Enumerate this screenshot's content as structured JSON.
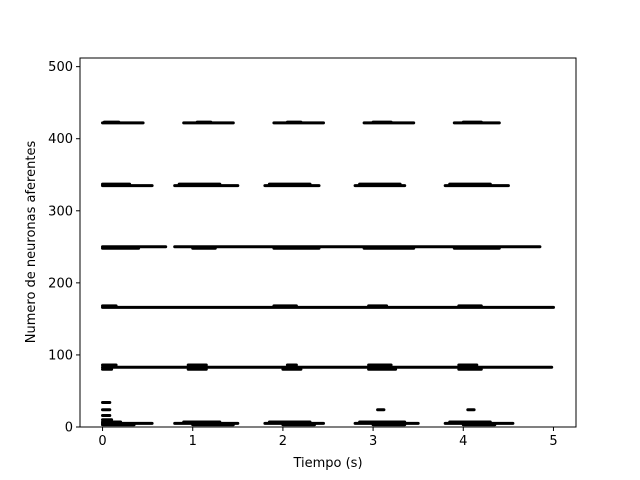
{
  "chart_data": {
    "type": "scatter",
    "title": "",
    "xlabel": "Tiempo (s)",
    "ylabel": "Numero de neuronas aferentes",
    "xlim": [
      -0.25,
      5.25
    ],
    "ylim": [
      0,
      512
    ],
    "xticks": [
      0,
      1,
      2,
      3,
      4,
      5
    ],
    "yticks": [
      0,
      100,
      200,
      300,
      400,
      500
    ],
    "grid": false,
    "legend": "none",
    "marker_color": "#000000",
    "series": [
      {
        "neuron": 422,
        "spikes": [
          [
            0.0,
            0.45
          ],
          [
            0.9,
            1.45
          ],
          [
            1.9,
            2.45
          ],
          [
            2.9,
            3.45
          ],
          [
            3.9,
            4.4
          ]
        ]
      },
      {
        "neuron": 423,
        "spikes": [
          [
            0.02,
            0.18
          ],
          [
            1.05,
            1.2
          ],
          [
            2.05,
            2.2
          ],
          [
            3.0,
            3.2
          ],
          [
            4.0,
            4.2
          ]
        ]
      },
      {
        "neuron": 335,
        "spikes": [
          [
            0.0,
            0.55
          ],
          [
            0.8,
            1.5
          ],
          [
            1.8,
            2.4
          ],
          [
            2.8,
            3.35
          ],
          [
            3.8,
            4.5
          ]
        ]
      },
      {
        "neuron": 337,
        "spikes": [
          [
            0.0,
            0.3
          ],
          [
            0.85,
            1.3
          ],
          [
            1.85,
            2.3
          ],
          [
            2.85,
            3.3
          ],
          [
            3.85,
            4.3
          ]
        ]
      },
      {
        "neuron": 250,
        "spikes": [
          [
            0.0,
            0.7
          ],
          [
            0.8,
            4.85
          ]
        ]
      },
      {
        "neuron": 248,
        "spikes": [
          [
            0.0,
            0.4
          ],
          [
            1.0,
            1.25
          ],
          [
            1.9,
            2.4
          ],
          [
            2.9,
            3.45
          ],
          [
            3.9,
            4.4
          ]
        ]
      },
      {
        "neuron": 166,
        "spikes": [
          [
            0.0,
            5.0
          ]
        ]
      },
      {
        "neuron": 168,
        "spikes": [
          [
            0.0,
            0.15
          ],
          [
            1.9,
            2.15
          ],
          [
            2.95,
            3.15
          ],
          [
            3.95,
            4.2
          ]
        ]
      },
      {
        "neuron": 83,
        "spikes": [
          [
            0.0,
            4.98
          ]
        ]
      },
      {
        "neuron": 86,
        "spikes": [
          [
            0.0,
            0.15
          ],
          [
            0.95,
            1.15
          ],
          [
            2.05,
            2.15
          ],
          [
            2.95,
            3.2
          ],
          [
            3.95,
            4.15
          ]
        ]
      },
      {
        "neuron": 80,
        "spikes": [
          [
            0.0,
            0.1
          ],
          [
            0.95,
            1.15
          ],
          [
            2.0,
            2.2
          ],
          [
            2.95,
            3.25
          ],
          [
            3.95,
            4.2
          ]
        ]
      },
      {
        "neuron": 34,
        "spikes": [
          [
            0.0,
            0.08
          ]
        ]
      },
      {
        "neuron": 24,
        "spikes": [
          [
            0.0,
            0.08
          ],
          [
            3.05,
            3.12
          ],
          [
            4.05,
            4.12
          ]
        ]
      },
      {
        "neuron": 16,
        "spikes": [
          [
            0.0,
            0.08
          ]
        ]
      },
      {
        "neuron": 10,
        "spikes": [
          [
            0.0,
            0.1
          ]
        ]
      },
      {
        "neuron": 7,
        "spikes": [
          [
            0.0,
            0.2
          ],
          [
            0.9,
            1.3
          ],
          [
            1.85,
            2.3
          ],
          [
            2.85,
            3.35
          ],
          [
            3.85,
            4.3
          ]
        ]
      },
      {
        "neuron": 5,
        "spikes": [
          [
            0.0,
            0.55
          ],
          [
            0.8,
            1.5
          ],
          [
            1.8,
            2.45
          ],
          [
            2.8,
            3.5
          ],
          [
            3.8,
            4.55
          ]
        ]
      },
      {
        "neuron": 3,
        "spikes": [
          [
            0.0,
            0.35
          ],
          [
            1.0,
            1.45
          ],
          [
            2.0,
            2.35
          ],
          [
            3.0,
            3.35
          ],
          [
            4.0,
            4.35
          ]
        ]
      }
    ]
  }
}
